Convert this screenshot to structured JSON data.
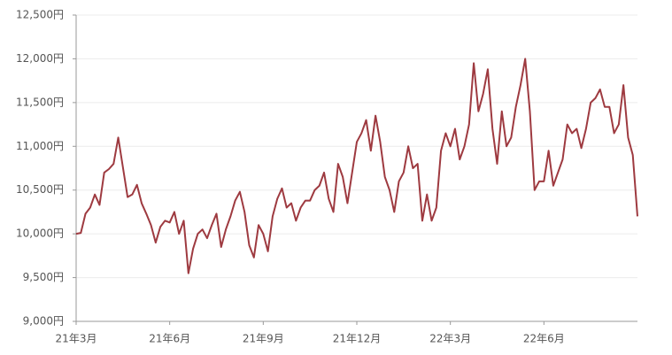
{
  "chart_data": {
    "type": "line",
    "categories": [
      "21年3月",
      null,
      null,
      null,
      null,
      null,
      null,
      null,
      null,
      null,
      null,
      null,
      null,
      null,
      null,
      null,
      null,
      null,
      null,
      null,
      "21年6月",
      null,
      null,
      null,
      null,
      null,
      null,
      null,
      null,
      null,
      null,
      null,
      null,
      null,
      null,
      null,
      null,
      null,
      null,
      null,
      "21年9月",
      null,
      null,
      null,
      null,
      null,
      null,
      null,
      null,
      null,
      null,
      null,
      null,
      null,
      null,
      null,
      null,
      null,
      null,
      null,
      "21年12月",
      null,
      null,
      null,
      null,
      null,
      null,
      null,
      null,
      null,
      null,
      null,
      null,
      null,
      null,
      null,
      null,
      null,
      null,
      null,
      "22年3月",
      null,
      null,
      null,
      null,
      null,
      null,
      null,
      null,
      null,
      null,
      null,
      null,
      null,
      null,
      null,
      null,
      null,
      null,
      null,
      "22年6月",
      null,
      null,
      null,
      null,
      null,
      null,
      null,
      null,
      null,
      null,
      null,
      null,
      null,
      null,
      null,
      null,
      null,
      null,
      null,
      null
    ],
    "series": [
      {
        "color": "#9e3a40",
        "values": [
          10000,
          10010,
          10230,
          10300,
          10450,
          10330,
          10700,
          10740,
          10800,
          11100,
          10760,
          10420,
          10450,
          10560,
          10350,
          10230,
          10100,
          9900,
          10080,
          10150,
          10130,
          10250,
          10000,
          10150,
          9550,
          9830,
          10000,
          10050,
          9950,
          10100,
          10230,
          9850,
          10050,
          10200,
          10380,
          10480,
          10250,
          9870,
          9730,
          10100,
          10000,
          9800,
          10200,
          10400,
          10520,
          10300,
          10350,
          10150,
          10300,
          10380,
          10380,
          10500,
          10550,
          10700,
          10400,
          10250,
          10800,
          10650,
          10350,
          10700,
          11050,
          11150,
          11300,
          10950,
          11350,
          11050,
          10650,
          10500,
          10250,
          10600,
          10700,
          11000,
          10750,
          10800,
          10150,
          10450,
          10150,
          10300,
          10950,
          11150,
          11000,
          11200,
          10850,
          11000,
          11250,
          11950,
          11400,
          11600,
          11880,
          11200,
          10800,
          11400,
          11000,
          11100,
          11450,
          11700,
          12000,
          11400,
          10500,
          10600,
          10600,
          10950,
          10550,
          10700,
          10850,
          11250,
          11150,
          11200,
          10980,
          11200,
          11500,
          11550,
          11650,
          11450,
          11450,
          11150,
          11250,
          11700,
          11100,
          10900,
          10200
        ]
      }
    ],
    "ylim": [
      9000,
      12500
    ],
    "yticks": [
      {
        "value": 9000,
        "label": "9,000円"
      },
      {
        "value": 9500,
        "label": "9,500円"
      },
      {
        "value": 10000,
        "label": "10,000円"
      },
      {
        "value": 10500,
        "label": "10,500円"
      },
      {
        "value": 11000,
        "label": "11,000円"
      },
      {
        "value": 11500,
        "label": "11,500円"
      },
      {
        "value": 12000,
        "label": "12,000円"
      },
      {
        "value": 12500,
        "label": "12,500円"
      }
    ],
    "grid": true
  }
}
